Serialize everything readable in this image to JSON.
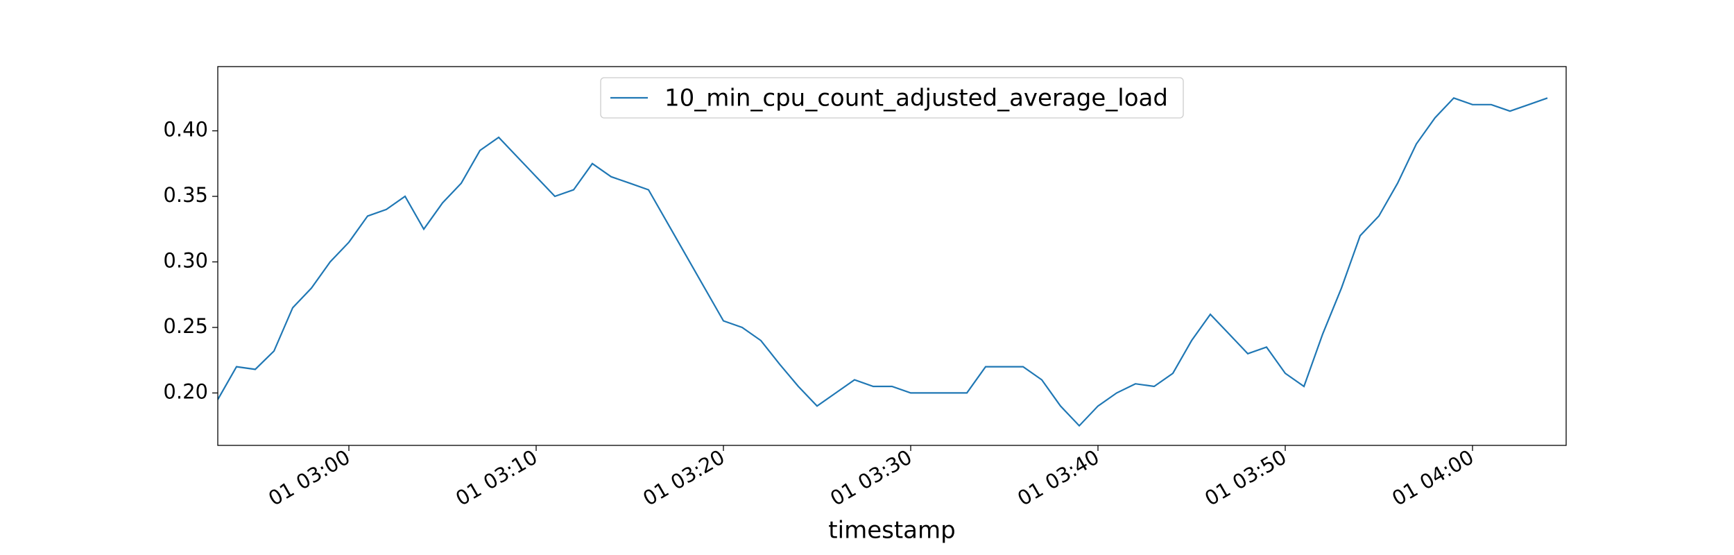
{
  "chart_data": {
    "type": "line",
    "x_label": "timestamp",
    "x": [
      "01 02:53",
      "01 02:54",
      "01 02:55",
      "01 02:56",
      "01 02:57",
      "01 02:58",
      "01 02:59",
      "01 03:00",
      "01 03:01",
      "01 03:02",
      "01 03:03",
      "01 03:04",
      "01 03:05",
      "01 03:06",
      "01 03:07",
      "01 03:08",
      "01 03:09",
      "01 03:10",
      "01 03:11",
      "01 03:12",
      "01 03:13",
      "01 03:14",
      "01 03:15",
      "01 03:16",
      "01 03:17",
      "01 03:18",
      "01 03:19",
      "01 03:20",
      "01 03:21",
      "01 03:22",
      "01 03:23",
      "01 03:24",
      "01 03:25",
      "01 03:26",
      "01 03:27",
      "01 03:28",
      "01 03:29",
      "01 03:30",
      "01 03:31",
      "01 03:32",
      "01 03:33",
      "01 03:34",
      "01 03:35",
      "01 03:36",
      "01 03:37",
      "01 03:38",
      "01 03:39",
      "01 03:40",
      "01 03:41",
      "01 03:42",
      "01 03:43",
      "01 03:44",
      "01 03:45",
      "01 03:46",
      "01 03:47",
      "01 03:48",
      "01 03:49",
      "01 03:50",
      "01 03:51",
      "01 03:52",
      "01 03:53",
      "01 03:54",
      "01 03:55",
      "01 03:56",
      "01 03:57",
      "01 03:58",
      "01 03:59",
      "01 04:00",
      "01 04:01",
      "01 04:02",
      "01 04:03",
      "01 04:04"
    ],
    "series": [
      {
        "name": "10_min_cpu_count_adjusted_average_load",
        "color": "#1f77b4",
        "values": [
          0.195,
          0.22,
          0.218,
          0.232,
          0.265,
          0.28,
          0.3,
          0.315,
          0.335,
          0.34,
          0.35,
          0.325,
          0.345,
          0.36,
          0.385,
          0.395,
          0.38,
          0.365,
          0.35,
          0.355,
          0.375,
          0.365,
          0.36,
          0.355,
          0.33,
          0.305,
          0.28,
          0.255,
          0.25,
          0.24,
          0.222,
          0.205,
          0.19,
          0.2,
          0.21,
          0.205,
          0.205,
          0.2,
          0.2,
          0.2,
          0.2,
          0.22,
          0.22,
          0.22,
          0.21,
          0.19,
          0.175,
          0.19,
          0.2,
          0.207,
          0.205,
          0.215,
          0.24,
          0.26,
          0.245,
          0.23,
          0.235,
          0.215,
          0.205,
          0.245,
          0.28,
          0.32,
          0.335,
          0.36,
          0.39,
          0.41,
          0.425,
          0.42,
          0.42,
          0.415,
          0.42,
          0.425
        ]
      }
    ],
    "xlim": [
      "01 02:53",
      "01 04:05"
    ],
    "xticks": [
      "01 03:00",
      "01 03:10",
      "01 03:20",
      "01 03:30",
      "01 03:40",
      "01 03:50",
      "01 04:00"
    ],
    "ylim": [
      0.16,
      0.449
    ],
    "yticks": [
      {
        "value": 0.2,
        "label": "0.20"
      },
      {
        "value": 0.25,
        "label": "0.25"
      },
      {
        "value": 0.3,
        "label": "0.30"
      },
      {
        "value": 0.35,
        "label": "0.35"
      },
      {
        "value": 0.4,
        "label": "0.40"
      }
    ],
    "legend": "upper center"
  }
}
